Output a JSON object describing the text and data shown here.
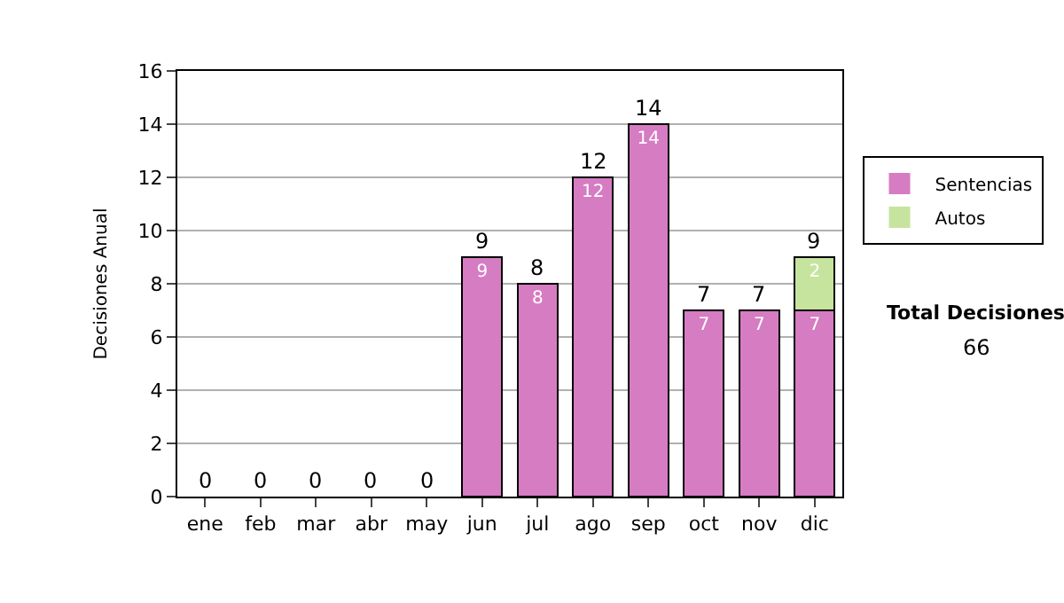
{
  "chart_data": {
    "type": "bar",
    "stacked": true,
    "ylabel": "Decisiones Anual",
    "categories": [
      "ene",
      "feb",
      "mar",
      "abr",
      "may",
      "jun",
      "jul",
      "ago",
      "sep",
      "oct",
      "nov",
      "dic"
    ],
    "series": [
      {
        "name": "Sentencias",
        "color": "#d67cc2",
        "values": [
          0,
          0,
          0,
          0,
          0,
          9,
          8,
          12,
          14,
          7,
          7,
          7
        ],
        "value_labels": [
          null,
          null,
          null,
          null,
          null,
          "9",
          "8",
          "12",
          "14",
          "7",
          "7",
          "7"
        ]
      },
      {
        "name": "Autos",
        "color": "#c6e49e",
        "values": [
          0,
          0,
          0,
          0,
          0,
          0,
          0,
          0,
          0,
          0,
          0,
          2
        ],
        "value_labels": [
          null,
          null,
          null,
          null,
          null,
          null,
          null,
          null,
          null,
          null,
          null,
          "2"
        ]
      }
    ],
    "totals": [
      "0",
      "0",
      "0",
      "0",
      "0",
      "9",
      "8",
      "12",
      "14",
      "7",
      "7",
      "9"
    ],
    "ylim": [
      0,
      16
    ],
    "yticks": [
      0,
      2,
      4,
      6,
      8,
      10,
      12,
      14,
      16
    ],
    "grid": "y",
    "legend": "right",
    "annotations": [
      "Total Decisiones",
      "66"
    ]
  }
}
